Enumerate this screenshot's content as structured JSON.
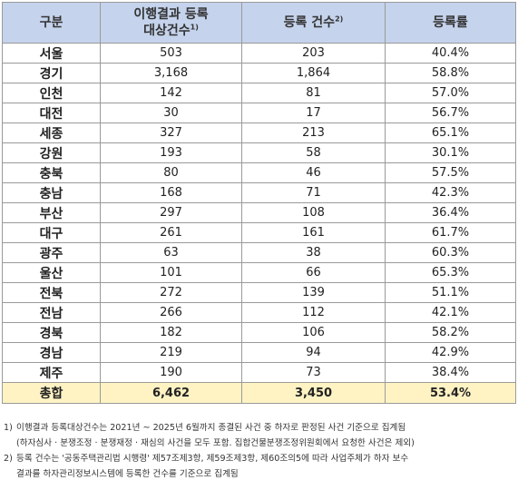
{
  "headers": {
    "region": "구분",
    "target_line1": "이행결과 등록",
    "target_line2": "대상건수",
    "target_sup": "1)",
    "registered": "등록 건수",
    "registered_sup": "2)",
    "rate": "등록률"
  },
  "rows": [
    {
      "region": "서울",
      "target": "503",
      "registered": "203",
      "rate": "40.4%"
    },
    {
      "region": "경기",
      "target": "3,168",
      "registered": "1,864",
      "rate": "58.8%"
    },
    {
      "region": "인천",
      "target": "142",
      "registered": "81",
      "rate": "57.0%"
    },
    {
      "region": "대전",
      "target": "30",
      "registered": "17",
      "rate": "56.7%"
    },
    {
      "region": "세종",
      "target": "327",
      "registered": "213",
      "rate": "65.1%"
    },
    {
      "region": "강원",
      "target": "193",
      "registered": "58",
      "rate": "30.1%"
    },
    {
      "region": "충북",
      "target": "80",
      "registered": "46",
      "rate": "57.5%"
    },
    {
      "region": "충남",
      "target": "168",
      "registered": "71",
      "rate": "42.3%"
    },
    {
      "region": "부산",
      "target": "297",
      "registered": "108",
      "rate": "36.4%"
    },
    {
      "region": "대구",
      "target": "261",
      "registered": "161",
      "rate": "61.7%"
    },
    {
      "region": "광주",
      "target": "63",
      "registered": "38",
      "rate": "60.3%"
    },
    {
      "region": "울산",
      "target": "101",
      "registered": "66",
      "rate": "65.3%"
    },
    {
      "region": "전북",
      "target": "272",
      "registered": "139",
      "rate": "51.1%"
    },
    {
      "region": "전남",
      "target": "266",
      "registered": "112",
      "rate": "42.1%"
    },
    {
      "region": "경북",
      "target": "182",
      "registered": "106",
      "rate": "58.2%"
    },
    {
      "region": "경남",
      "target": "219",
      "registered": "94",
      "rate": "42.9%"
    },
    {
      "region": "제주",
      "target": "190",
      "registered": "73",
      "rate": "38.4%"
    }
  ],
  "total": {
    "region": "총합",
    "target": "6,462",
    "registered": "3,450",
    "rate": "53.4%"
  },
  "notes": [
    {
      "num": "1)",
      "lines": [
        "이행결과 등록대상건수는 2021년 ~ 2025년 6월까지 종결된 사건 중 하자로 판정된 사건 기준으로 집계됨",
        "(하자심사 · 분쟁조정 · 분쟁재정 · 재심의 사건을 모두 포함. 집합건물분쟁조정위원회에서 요청한 사건은 제외)"
      ]
    },
    {
      "num": "2)",
      "lines": [
        "등록 건수는 '공동주택관리법 시행령' 제57조제3항, 제59조제3항, 제60조의5에 따라 사업주체가 하자 보수",
        "결과를 하자관리정보시스템에 등록한 건수를 기준으로 집계됨"
      ]
    }
  ]
}
